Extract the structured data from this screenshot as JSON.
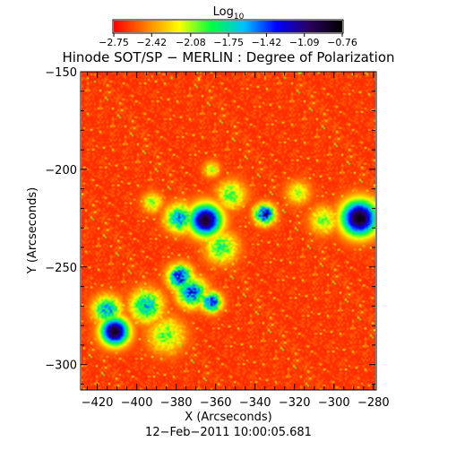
{
  "chart_data": {
    "type": "heatmap",
    "title": "Hinode SOT/SP − MERLIN : Degree of Polarization",
    "xlabel": "X (Arcseconds)",
    "ylabel": "Y (Arcseconds)",
    "timestamp": "12−Feb−2011 10:00:05.681",
    "xlim": [
      -428,
      -279
    ],
    "ylim": [
      -313,
      -150
    ],
    "x_ticks": [
      -420,
      -400,
      -380,
      -360,
      -340,
      -320,
      -300,
      -280
    ],
    "x_tick_labels": [
      "−420",
      "−400",
      "−380",
      "−360",
      "−340",
      "−320",
      "−300",
      "−280"
    ],
    "y_ticks": [
      -150,
      -200,
      -250,
      -300
    ],
    "y_tick_labels": [
      "−150",
      "−200",
      "−250",
      "−300"
    ],
    "colorbar": {
      "label_base": "Log",
      "label_sub": "10",
      "range": [
        -2.75,
        -0.76
      ],
      "ticks": [
        -2.75,
        -2.42,
        -2.08,
        -1.75,
        -1.42,
        -1.09,
        -0.76
      ],
      "tick_labels": [
        "−2.75",
        "−2.42",
        "−2.08",
        "−1.75",
        "−1.42",
        "−1.09",
        "−0.76"
      ],
      "colors": [
        "#ff0000",
        "#ff8000",
        "#ffff00",
        "#00ff40",
        "#00c0ff",
        "#0000ff",
        "#2a0060",
        "#000000"
      ]
    },
    "background_level": -2.65,
    "features": [
      {
        "kind": "pore",
        "x": -287,
        "y": -225,
        "size": 9,
        "peak": -0.78
      },
      {
        "kind": "pore",
        "x": -365,
        "y": -226,
        "size": 8,
        "peak": -0.85
      },
      {
        "kind": "pore",
        "x": -411,
        "y": -283,
        "size": 7,
        "peak": -0.82
      },
      {
        "kind": "plage",
        "x": -335,
        "y": -223,
        "size": 5,
        "peak": -1.15
      },
      {
        "kind": "plage",
        "x": -352,
        "y": -213,
        "size": 7,
        "peak": -1.9
      },
      {
        "kind": "plage",
        "x": -378,
        "y": -225,
        "size": 7,
        "peak": -1.5
      },
      {
        "kind": "plage",
        "x": -357,
        "y": -240,
        "size": 8,
        "peak": -1.85
      },
      {
        "kind": "plage",
        "x": -378,
        "y": -255,
        "size": 6,
        "peak": -1.2
      },
      {
        "kind": "plage",
        "x": -372,
        "y": -263,
        "size": 7,
        "peak": -1.3
      },
      {
        "kind": "plage",
        "x": -362,
        "y": -268,
        "size": 5,
        "peak": -1.25
      },
      {
        "kind": "plage",
        "x": -395,
        "y": -270,
        "size": 8,
        "peak": -1.6
      },
      {
        "kind": "plage",
        "x": -415,
        "y": -272,
        "size": 7,
        "peak": -1.55
      },
      {
        "kind": "plage",
        "x": -385,
        "y": -285,
        "size": 9,
        "peak": -1.95
      },
      {
        "kind": "plage",
        "x": -305,
        "y": -226,
        "size": 7,
        "peak": -2.0
      },
      {
        "kind": "plage",
        "x": -318,
        "y": -212,
        "size": 6,
        "peak": -2.05
      },
      {
        "kind": "plage",
        "x": -392,
        "y": -217,
        "size": 5,
        "peak": -2.0
      },
      {
        "kind": "plage",
        "x": -362,
        "y": -200,
        "size": 4,
        "peak": -2.05
      }
    ]
  }
}
